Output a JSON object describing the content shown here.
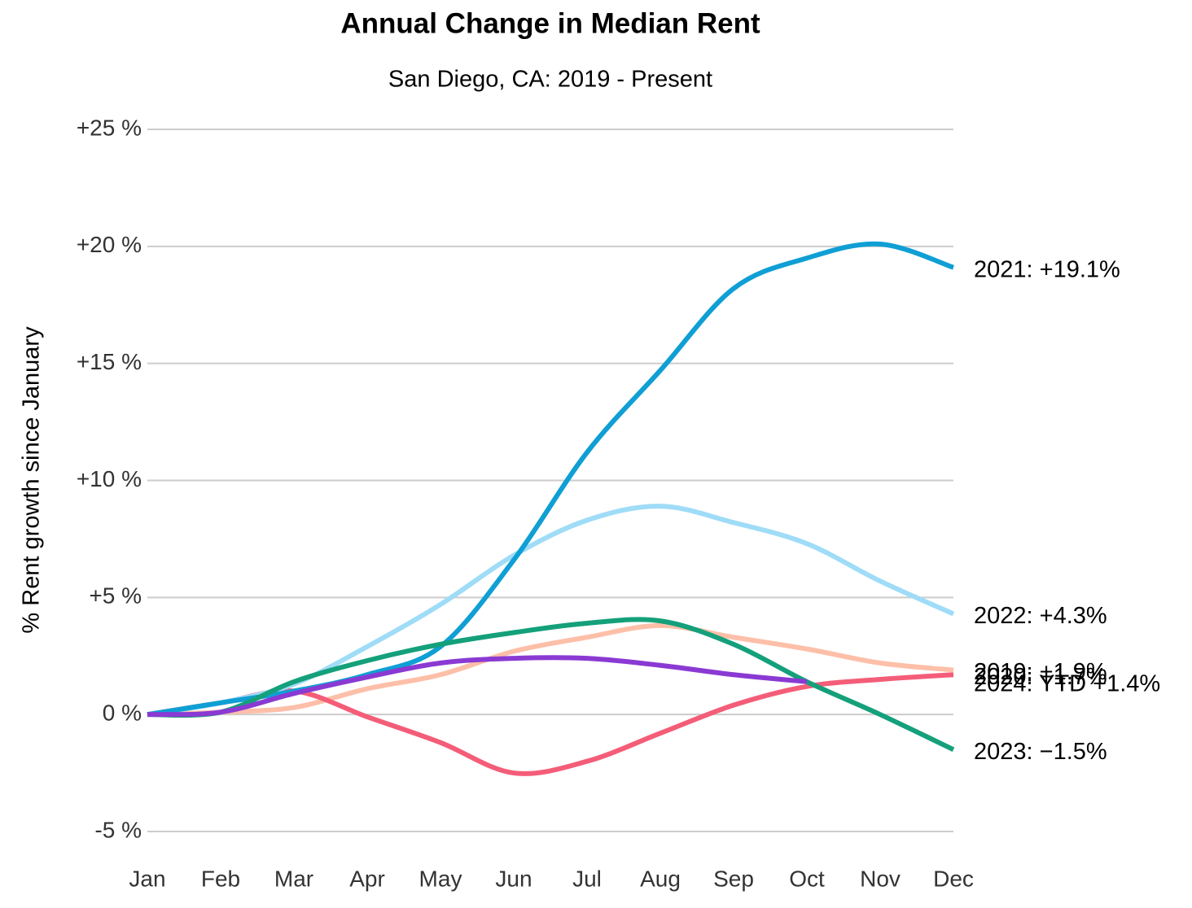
{
  "chart_data": {
    "type": "line",
    "title": "Annual Change in Median Rent",
    "subtitle": "San Diego, CA: 2019 - Present",
    "y_label": "% Rent growth since January",
    "categories": [
      "Jan",
      "Feb",
      "Mar",
      "Apr",
      "May",
      "Jun",
      "Jul",
      "Aug",
      "Sep",
      "Oct",
      "Nov",
      "Dec"
    ],
    "ylim": [
      -5,
      25
    ],
    "yticks": [
      {
        "value": -5,
        "label": "-5 %"
      },
      {
        "value": 0,
        "label": "0 %"
      },
      {
        "value": 5,
        "label": "+5 %"
      },
      {
        "value": 10,
        "label": "+10 %"
      },
      {
        "value": 15,
        "label": "+15 %"
      },
      {
        "value": 20,
        "label": "+20 %"
      },
      {
        "value": 25,
        "label": "+25 %"
      }
    ],
    "grid": true,
    "series": [
      {
        "name": "2019",
        "label": "2019: +1.9%",
        "color": "#fdbfa8",
        "values": [
          0,
          0.1,
          0.3,
          1.1,
          1.7,
          2.7,
          3.3,
          3.8,
          3.3,
          2.8,
          2.2,
          1.9
        ]
      },
      {
        "name": "2020",
        "label": "2020: +1.7%",
        "color": "#f45d78",
        "values": [
          0,
          0.5,
          1.0,
          -0.1,
          -1.2,
          -2.5,
          -2.0,
          -0.8,
          0.4,
          1.2,
          1.5,
          1.7
        ]
      },
      {
        "name": "2022",
        "label": "2022: +4.3%",
        "color": "#9fdcf7",
        "values": [
          0,
          0.5,
          1.3,
          2.9,
          4.7,
          6.8,
          8.3,
          8.9,
          8.2,
          7.3,
          5.7,
          4.3
        ]
      },
      {
        "name": "2021",
        "label": "2021: +19.1%",
        "color": "#0f9fd4",
        "values": [
          0,
          0.5,
          1.0,
          1.7,
          2.9,
          6.6,
          11.2,
          14.7,
          18.2,
          19.5,
          20.1,
          19.1
        ]
      },
      {
        "name": "2023",
        "label": "2023: −1.5%",
        "color": "#14a07a",
        "values": [
          0,
          0.1,
          1.4,
          2.3,
          3.0,
          3.5,
          3.9,
          4.0,
          3.0,
          1.4,
          0.0,
          -1.5
        ]
      },
      {
        "name": "2024",
        "label": "2024: YTD +1.4%",
        "color": "#8a3ad3",
        "values": [
          0,
          0.1,
          0.9,
          1.6,
          2.2,
          2.4,
          2.4,
          2.1,
          1.7,
          1.4,
          null,
          null
        ]
      }
    ]
  }
}
